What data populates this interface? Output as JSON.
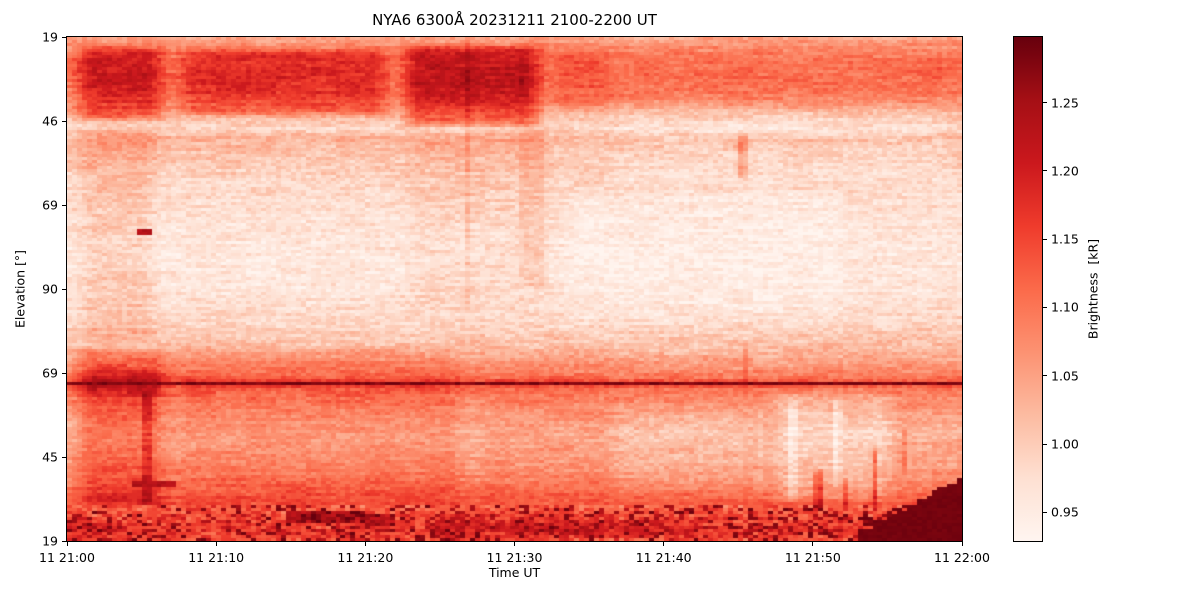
{
  "chart_data": {
    "type": "heatmap",
    "title": "NYA6 6300Å 20231211 2100-2200 UT",
    "xlabel": "Time UT",
    "ylabel": "Elevation [°]",
    "x_ticks": [
      "11 21:00",
      "11 21:10",
      "11 21:20",
      "11 21:30",
      "11 21:40",
      "11 21:50",
      "11 22:00"
    ],
    "y_ticks": [
      "19",
      "46",
      "69",
      "90",
      "69",
      "45",
      "19"
    ],
    "y_axis_note": "meridian elevation scan: 19° → 90° zenith → 19°",
    "grid": false,
    "colormap": "Reds",
    "colormap_anchors": [
      "#fff5f0",
      "#fee0d2",
      "#fcbba1",
      "#fc9272",
      "#fb6a4a",
      "#ef3b2c",
      "#cb181d",
      "#a50f15",
      "#67000d"
    ],
    "value_range": [
      0.929,
      1.298
    ],
    "colorbar": {
      "label": "Brightness  [kR]",
      "ticks": [
        0.95,
        1.0,
        1.05,
        1.1,
        1.15,
        1.2,
        1.25
      ]
    },
    "n_time_bins": 180,
    "n_elevation_bins": 168,
    "noise_seed": 20231211,
    "noise_amplitude": 0.075,
    "brightness_profile": [
      [
        0.0,
        1.045
      ],
      [
        0.015,
        1.075
      ],
      [
        0.04,
        1.1
      ],
      [
        0.075,
        1.11
      ],
      [
        0.11,
        1.095
      ],
      [
        0.14,
        1.05
      ],
      [
        0.16,
        1.01
      ],
      [
        0.181,
        0.985
      ],
      [
        0.2,
        1.03
      ],
      [
        0.23,
        1.01
      ],
      [
        0.29,
        0.985
      ],
      [
        0.35,
        0.968
      ],
      [
        0.43,
        0.957
      ],
      [
        0.51,
        0.965
      ],
      [
        0.57,
        0.988
      ],
      [
        0.62,
        1.02
      ],
      [
        0.66,
        1.07
      ],
      [
        0.684,
        1.11
      ],
      [
        0.7,
        1.1
      ],
      [
        0.74,
        1.06
      ],
      [
        0.79,
        1.03
      ],
      [
        0.84,
        1.05
      ],
      [
        0.88,
        1.08
      ],
      [
        0.92,
        1.12
      ],
      [
        0.95,
        1.15
      ],
      [
        0.98,
        1.18
      ],
      [
        1.0,
        1.16
      ]
    ],
    "time_modulation": [
      {
        "u": [
          0.0,
          0.115
        ],
        "v": [
          0.01,
          0.17
        ],
        "dv": 0.1
      },
      {
        "u": [
          0.115,
          0.366
        ],
        "v": [
          0.015,
          0.16
        ],
        "dv": 0.075
      },
      {
        "u": [
          0.366,
          0.534
        ],
        "v": [
          0.01,
          0.18
        ],
        "dv": 0.115
      },
      {
        "u": [
          0.534,
          0.62
        ],
        "v": [
          0.02,
          0.15
        ],
        "dv": 0.03
      },
      {
        "u": [
          0.95,
          1.0
        ],
        "v": [
          0.03,
          0.1
        ],
        "dv": 0.02
      },
      {
        "u": [
          0.6,
          1.0
        ],
        "v": [
          0.13,
          0.3
        ],
        "dv": -0.018
      },
      {
        "u": [
          0.0,
          0.105
        ],
        "v": [
          0.17,
          0.615
        ],
        "dv": 0.035
      },
      {
        "u": [
          0.0,
          0.12
        ],
        "v": [
          0.615,
          0.94
        ],
        "dv": 0.065
      },
      {
        "u": [
          0.105,
          0.45
        ],
        "v": [
          0.615,
          0.935
        ],
        "dv": 0.03
      },
      {
        "u": [
          0.45,
          0.62
        ],
        "v": [
          0.615,
          0.93
        ],
        "dv": 0.012
      },
      {
        "u": [
          0.366,
          0.55
        ],
        "v": [
          0.18,
          0.545
        ],
        "dv": 0.018
      },
      {
        "u": [
          0.55,
          0.88
        ],
        "v": [
          0.3,
          0.58
        ],
        "dv": -0.015
      },
      {
        "u": [
          0.78,
          0.935
        ],
        "v": [
          0.7,
          0.925
        ],
        "dv": -0.045
      },
      {
        "u": [
          0.6,
          0.78
        ],
        "v": [
          0.74,
          0.905
        ],
        "dv": -0.02
      },
      {
        "u": [
          0.0,
          0.12
        ],
        "v": [
          0.65,
          0.72
        ],
        "dv": 0.04
      },
      {
        "u": [
          0.4,
          0.62
        ],
        "v": [
          0.945,
          1.0
        ],
        "dv": 0.04
      },
      {
        "u": [
          0.6,
          0.73
        ],
        "v": [
          0.955,
          1.0
        ],
        "dv": 0.03
      },
      {
        "u": [
          0.0,
          0.06
        ],
        "v": [
          0.96,
          1.0
        ],
        "dv": 0.03
      }
    ],
    "streaks": [
      {
        "u": [
          0.443,
          0.453
        ],
        "v": [
          0.0,
          0.545
        ],
        "dv": 0.03
      },
      {
        "u": [
          0.506,
          0.537
        ],
        "v": [
          0.0,
          0.5
        ],
        "dv": 0.022
      },
      {
        "u": [
          0.748,
          0.762
        ],
        "v": [
          0.185,
          0.285
        ],
        "dv": 0.07
      },
      {
        "u": [
          0.08,
          0.093
        ],
        "v": [
          0.7,
          0.935
        ],
        "dv": 0.06
      },
      {
        "u": [
          0.836,
          0.847
        ],
        "v": [
          0.855,
          0.947
        ],
        "dv": 0.095
      },
      {
        "u": [
          0.868,
          0.877
        ],
        "v": [
          0.875,
          0.945
        ],
        "dv": 0.06
      },
      {
        "u": [
          0.899,
          0.91
        ],
        "v": [
          0.815,
          0.945
        ],
        "dv": 0.09
      },
      {
        "u": [
          0.934,
          0.943
        ],
        "v": [
          0.775,
          0.87
        ],
        "dv": 0.05
      },
      {
        "u": [
          0.805,
          0.818
        ],
        "v": [
          0.72,
          0.93
        ],
        "dv": -0.045
      },
      {
        "u": [
          0.855,
          0.867
        ],
        "v": [
          0.72,
          0.9
        ],
        "dv": -0.04
      },
      {
        "u": [
          0.77,
          0.783
        ],
        "v": [
          0.73,
          0.92
        ],
        "dv": -0.03
      },
      {
        "u": [
          0.755,
          0.765
        ],
        "v": [
          0.6,
          0.72
        ],
        "dv": 0.035
      }
    ],
    "spots": [
      {
        "u": [
          0.078,
          0.092
        ],
        "v": [
          0.382,
          0.392
        ],
        "value": 1.23
      },
      {
        "u": [
          0.068,
          0.122
        ],
        "v": [
          0.886,
          0.897
        ],
        "value": 1.235
      },
      {
        "u": [
          0.244,
          0.33
        ],
        "v": [
          0.942,
          0.968
        ],
        "value": 1.255
      },
      {
        "u": [
          0.33,
          0.365
        ],
        "v": [
          0.952,
          0.975
        ],
        "value": 1.24
      }
    ],
    "dark_line": {
      "v": 0.688,
      "value": 1.26
    },
    "corner_wedge": {
      "u_start": 0.885,
      "v_at_start": 0.985,
      "v_at_end": 0.878,
      "value": 1.288
    },
    "bottom_band": {
      "v_start": 0.932,
      "mottle_amp": 0.09,
      "blob_threshold": 0.78,
      "blob_value": 1.225
    }
  }
}
